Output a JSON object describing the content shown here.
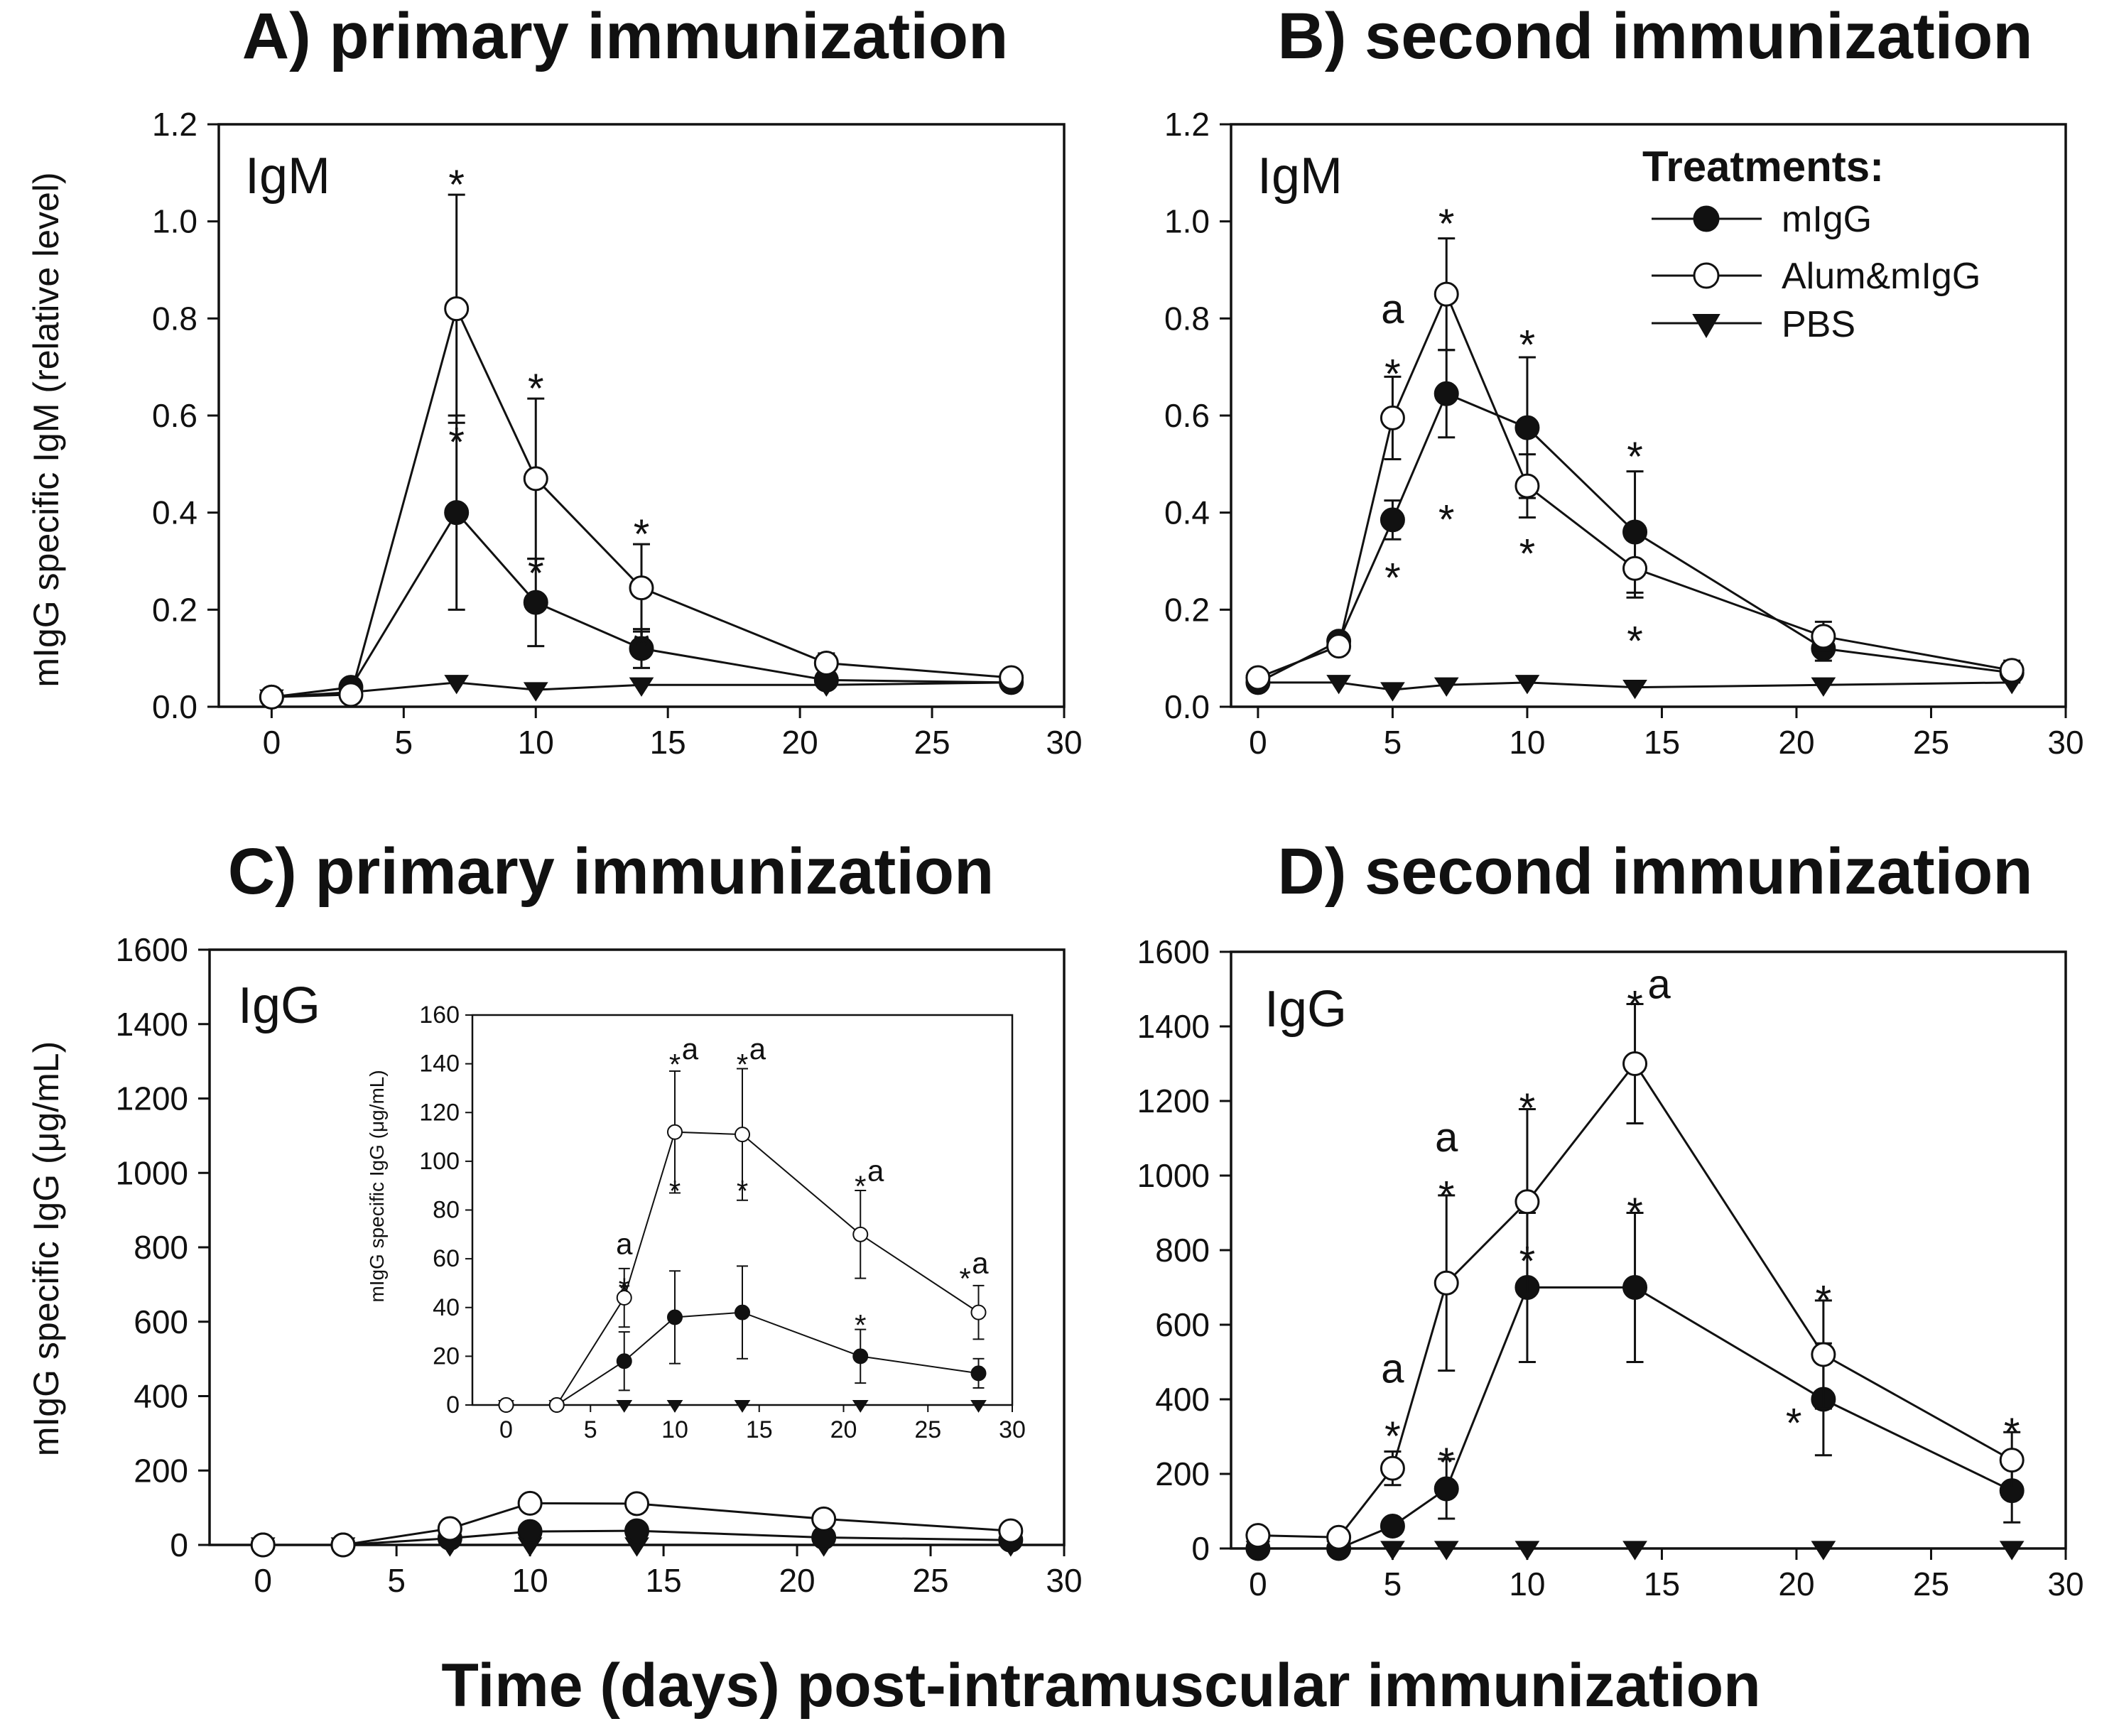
{
  "figure": {
    "xlabel": "Time (days) post-intramuscular immunization",
    "ylabel_top": "mIgG specific IgM (relative level)",
    "ylabel_bottom": "mIgG specific IgG (μg/mL)",
    "legend": {
      "title": "Treatments:",
      "items": [
        "mIgG",
        "Alum&mIgG",
        "PBS"
      ]
    }
  },
  "chart_data": [
    {
      "id": "A",
      "type": "line",
      "title": "A) primary immunization",
      "antibody_label": "IgM",
      "xlabel": "Time (days) post-intramuscular immunization",
      "ylabel": "mIgG specific IgM (relative level)",
      "xlim": [
        -2,
        30
      ],
      "ylim": [
        0,
        1.2
      ],
      "xticks": [
        0,
        5,
        10,
        15,
        20,
        25,
        30
      ],
      "yticks": [
        0.0,
        0.2,
        0.4,
        0.6,
        0.8,
        1.0,
        1.2
      ],
      "ytick_labels": [
        "0.0",
        "0.2",
        "0.4",
        "0.6",
        "0.8",
        "1.0",
        "1.2"
      ],
      "series": [
        {
          "name": "mIgG",
          "marker": "filled-circle",
          "x": [
            0,
            3,
            7,
            10,
            14,
            21,
            28
          ],
          "y": [
            0.02,
            0.04,
            0.4,
            0.215,
            0.12,
            0.055,
            0.05
          ],
          "err": [
            0.01,
            0.01,
            0.2,
            0.09,
            0.04,
            0.01,
            0.01
          ]
        },
        {
          "name": "Alum&mIgG",
          "marker": "open-circle",
          "x": [
            0,
            3,
            7,
            10,
            14,
            21,
            28
          ],
          "y": [
            0.02,
            0.025,
            0.82,
            0.47,
            0.245,
            0.09,
            0.06
          ],
          "err": [
            0.01,
            0.01,
            0.235,
            0.165,
            0.09,
            0.02,
            0.015
          ]
        },
        {
          "name": "PBS",
          "marker": "filled-triangle-down",
          "x": [
            0,
            3,
            7,
            10,
            14,
            21,
            28
          ],
          "y": [
            0.02,
            0.03,
            0.05,
            0.035,
            0.045,
            0.045,
            0.05
          ],
          "err": [
            0,
            0,
            0,
            0,
            0,
            0,
            0
          ]
        }
      ],
      "annotations": [
        {
          "text": "*",
          "x": 7,
          "y": 1.09
        },
        {
          "text": "*",
          "x": 7,
          "y": 0.56
        },
        {
          "text": "*",
          "x": 10,
          "y": 0.67
        },
        {
          "text": "*",
          "x": 10,
          "y": 0.29
        },
        {
          "text": "*",
          "x": 14,
          "y": 0.37
        },
        {
          "text": "*",
          "x": 14,
          "y": 0.14
        }
      ]
    },
    {
      "id": "B",
      "type": "line",
      "title": "B) second immunization",
      "antibody_label": "IgM",
      "xlabel": "Time (days) post-intramuscular immunization",
      "ylabel": "",
      "xlim": [
        -1,
        30
      ],
      "ylim": [
        0,
        1.2
      ],
      "xticks": [
        0,
        5,
        10,
        15,
        20,
        25,
        30
      ],
      "yticks": [
        0.0,
        0.2,
        0.4,
        0.6,
        0.8,
        1.0,
        1.2
      ],
      "ytick_labels": [
        "0.0",
        "0.2",
        "0.4",
        "0.6",
        "0.8",
        "1.0",
        "1.2"
      ],
      "series": [
        {
          "name": "mIgG",
          "marker": "filled-circle",
          "x": [
            0,
            3,
            5,
            7,
            10,
            14,
            21,
            28
          ],
          "y": [
            0.05,
            0.135,
            0.385,
            0.645,
            0.575,
            0.36,
            0.12,
            0.07
          ],
          "err": [
            0.01,
            0.01,
            0.04,
            0.09,
            0.145,
            0.125,
            0.025,
            0.02
          ]
        },
        {
          "name": "Alum&mIgG",
          "marker": "open-circle",
          "x": [
            0,
            3,
            5,
            7,
            10,
            14,
            21,
            28
          ],
          "y": [
            0.06,
            0.125,
            0.595,
            0.85,
            0.455,
            0.285,
            0.145,
            0.075
          ],
          "err": [
            0.015,
            0.01,
            0.085,
            0.115,
            0.065,
            0.06,
            0.03,
            0.02
          ]
        },
        {
          "name": "PBS",
          "marker": "filled-triangle-down",
          "x": [
            0,
            3,
            5,
            7,
            10,
            14,
            21,
            28
          ],
          "y": [
            0.05,
            0.05,
            0.035,
            0.045,
            0.05,
            0.04,
            0.045,
            0.05
          ],
          "err": [
            0,
            0,
            0,
            0,
            0,
            0,
            0,
            0
          ]
        }
      ],
      "annotations": [
        {
          "text": "a",
          "x": 5,
          "y": 0.79
        },
        {
          "text": "*",
          "x": 5,
          "y": 0.7
        },
        {
          "text": "*",
          "x": 5,
          "y": 0.28
        },
        {
          "text": "*",
          "x": 7,
          "y": 1.01
        },
        {
          "text": "*",
          "x": 7,
          "y": 0.4
        },
        {
          "text": "*",
          "x": 10,
          "y": 0.76
        },
        {
          "text": "*",
          "x": 10,
          "y": 0.33
        },
        {
          "text": "*",
          "x": 14,
          "y": 0.53
        },
        {
          "text": "*",
          "x": 14,
          "y": 0.15
        }
      ]
    },
    {
      "id": "C",
      "type": "line",
      "title": "C) primary immunization",
      "antibody_label": "IgG",
      "xlabel": "Time (days) post-intramuscular immunization",
      "ylabel": "mIgG specific IgG (μg/mL)",
      "xlim": [
        -2,
        30
      ],
      "ylim": [
        0,
        1600
      ],
      "xticks": [
        0,
        5,
        10,
        15,
        20,
        25,
        30
      ],
      "yticks": [
        0,
        200,
        400,
        600,
        800,
        1000,
        1200,
        1400,
        1600
      ],
      "ytick_labels": [
        "0",
        "200",
        "400",
        "600",
        "800",
        "1000",
        "1200",
        "1400",
        "1600"
      ],
      "series": [
        {
          "name": "mIgG",
          "marker": "filled-circle",
          "x": [
            0,
            3,
            7,
            10,
            14,
            21,
            28
          ],
          "y": [
            0,
            0,
            18,
            36,
            38,
            20,
            13
          ],
          "err": [
            0,
            0,
            0,
            0,
            0,
            0,
            0
          ]
        },
        {
          "name": "Alum&mIgG",
          "marker": "open-circle",
          "x": [
            0,
            3,
            7,
            10,
            14,
            21,
            28
          ],
          "y": [
            0,
            0,
            44,
            112,
            111,
            70,
            38
          ],
          "err": [
            0,
            0,
            0,
            0,
            0,
            0,
            0
          ]
        },
        {
          "name": "PBS",
          "marker": "filled-triangle-down",
          "x": [
            0,
            3,
            7,
            10,
            14,
            21,
            28
          ],
          "y": [
            0,
            0,
            0,
            0,
            0,
            0,
            0
          ],
          "err": [
            0,
            0,
            0,
            0,
            0,
            0,
            0
          ]
        }
      ],
      "inset": {
        "type": "line",
        "ylabel": "mIgG specific IgG (μg/mL)",
        "xlim": [
          -2,
          30
        ],
        "ylim": [
          0,
          160
        ],
        "xticks": [
          0,
          5,
          10,
          15,
          20,
          25,
          30
        ],
        "yticks": [
          0,
          20,
          40,
          60,
          80,
          100,
          120,
          140,
          160
        ],
        "ytick_labels": [
          "0",
          "20",
          "40",
          "60",
          "80",
          "100",
          "120",
          "140",
          "160"
        ],
        "series": [
          {
            "name": "mIgG",
            "marker": "filled-circle",
            "x": [
              0,
              3,
              7,
              10,
              14,
              21,
              28
            ],
            "y": [
              0,
              0,
              18,
              36,
              38,
              20,
              13
            ],
            "err": [
              0,
              0,
              12,
              19,
              19,
              11,
              6
            ]
          },
          {
            "name": "Alum&mIgG",
            "marker": "open-circle",
            "x": [
              0,
              3,
              7,
              10,
              14,
              21,
              28
            ],
            "y": [
              0,
              0,
              44,
              112,
              111,
              70,
              38
            ],
            "err": [
              0,
              0,
              12,
              25,
              27,
              18,
              11
            ]
          },
          {
            "name": "PBS",
            "marker": "filled-triangle-down",
            "x": [
              0,
              3,
              7,
              10,
              14,
              21,
              28
            ],
            "y": [
              0,
              0,
              0,
              0,
              0,
              0,
              0
            ],
            "err": [
              0,
              0,
              0,
              0,
              0,
              0,
              0
            ]
          }
        ],
        "annotations": [
          {
            "text": "a",
            "x": 7,
            "y": 62
          },
          {
            "text": "*",
            "x": 7,
            "y": 50
          },
          {
            "text": "*",
            "x": 7,
            "y": 48.5
          },
          {
            "text": "*",
            "x": 10,
            "y": 142
          },
          {
            "text": "a",
            "x": 10.9,
            "y": 142
          },
          {
            "text": "*",
            "x": 10,
            "y": 90
          },
          {
            "text": "*",
            "x": 14,
            "y": 142
          },
          {
            "text": "a",
            "x": 14.9,
            "y": 142
          },
          {
            "text": "*",
            "x": 14,
            "y": 90
          },
          {
            "text": "*",
            "x": 21,
            "y": 92
          },
          {
            "text": "a",
            "x": 21.9,
            "y": 92
          },
          {
            "text": "*",
            "x": 21,
            "y": 35
          },
          {
            "text": "*",
            "x": 27.2,
            "y": 54
          },
          {
            "text": "a",
            "x": 28.1,
            "y": 54
          }
        ]
      }
    },
    {
      "id": "D",
      "type": "line",
      "title": "D) second immunization",
      "antibody_label": "IgG",
      "xlabel": "Time (days) post-intramuscular immunization",
      "ylabel": "",
      "xlim": [
        -1,
        30
      ],
      "ylim": [
        0,
        1600
      ],
      "xticks": [
        0,
        5,
        10,
        15,
        20,
        25,
        30
      ],
      "yticks": [
        0,
        200,
        400,
        600,
        800,
        1000,
        1200,
        1400,
        1600
      ],
      "ytick_labels": [
        "0",
        "200",
        "400",
        "600",
        "800",
        "1000",
        "1200",
        "1400",
        "1600"
      ],
      "series": [
        {
          "name": "mIgG",
          "marker": "filled-circle",
          "x": [
            0,
            3,
            5,
            7,
            10,
            14,
            21,
            28
          ],
          "y": [
            0,
            0,
            60,
            160,
            700,
            700,
            400,
            155
          ],
          "err": [
            0,
            0,
            10,
            80,
            200,
            200,
            150,
            85
          ]
        },
        {
          "name": "Alum&mIgG",
          "marker": "open-circle",
          "x": [
            0,
            3,
            5,
            7,
            10,
            14,
            21,
            28
          ],
          "y": [
            35,
            30,
            215,
            712,
            930,
            1300,
            520,
            237
          ],
          "err": [
            10,
            8,
            45,
            235,
            248,
            160,
            145,
            75
          ]
        },
        {
          "name": "PBS",
          "marker": "filled-triangle-down",
          "x": [
            0,
            3,
            5,
            7,
            10,
            14,
            21,
            28
          ],
          "y": [
            0,
            0,
            0,
            0,
            0,
            0,
            0,
            0
          ],
          "err": [
            0,
            0,
            0,
            0,
            0,
            0,
            0,
            0
          ]
        }
      ],
      "annotations": [
        {
          "text": "a",
          "x": 5,
          "y": 445
        },
        {
          "text": "*",
          "x": 5,
          "y": 320
        },
        {
          "text": "a",
          "x": 7,
          "y": 1065
        },
        {
          "text": "*",
          "x": 7,
          "y": 965
        },
        {
          "text": "*",
          "x": 7,
          "y": 250
        },
        {
          "text": "*",
          "x": 10,
          "y": 1200
        },
        {
          "text": "*",
          "x": 10,
          "y": 790
        },
        {
          "text": "*",
          "x": 14,
          "y": 1475
        },
        {
          "text": "a",
          "x": 14.9,
          "y": 1475
        },
        {
          "text": "*",
          "x": 14,
          "y": 920
        },
        {
          "text": "*",
          "x": 21,
          "y": 685
        },
        {
          "text": "*",
          "x": 19.9,
          "y": 355
        },
        {
          "text": "*",
          "x": 28,
          "y": 330
        }
      ]
    }
  ]
}
